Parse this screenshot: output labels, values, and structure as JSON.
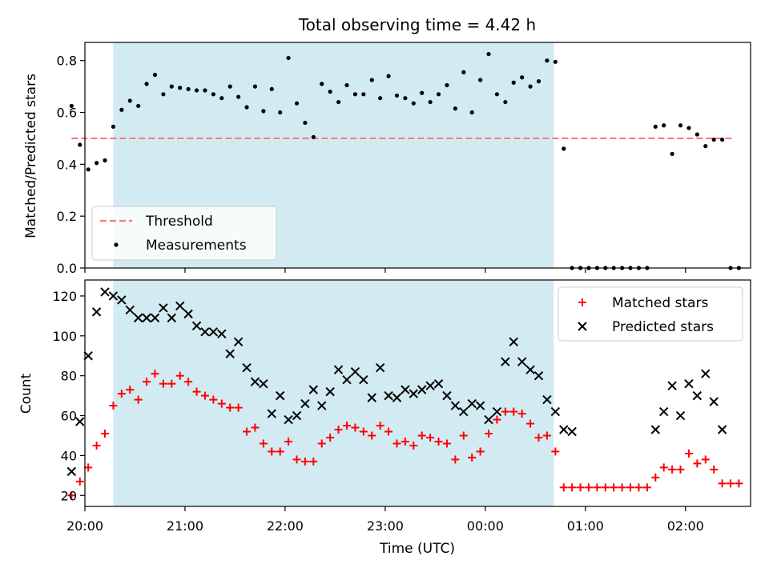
{
  "chart_data": [
    {
      "type": "scatter",
      "title": "Total observing time = 4.42 h",
      "xlabel": "",
      "ylabel": "Matched/Predicted stars",
      "ylim": [
        0,
        0.87
      ],
      "yticks": [
        "0.0",
        "0.2",
        "0.4",
        "0.6",
        "0.8"
      ],
      "xticks": [
        "20:00",
        "21:00",
        "22:00",
        "23:00",
        "00:00",
        "01:00",
        "02:00"
      ],
      "legend": {
        "placement": "lower-left",
        "entries": [
          "Threshold",
          "Measurements"
        ]
      },
      "shaded_interval": {
        "start": "20:17",
        "end": "00:41",
        "color": "#d2eaf1"
      },
      "threshold": {
        "name": "Threshold",
        "value": 0.5,
        "x_range": [
          "19:52",
          "02:28"
        ],
        "color": "#f87c7c"
      },
      "series": [
        {
          "name": "Measurements",
          "color": "#000000",
          "points": [
            [
              "19:52",
              0.625
            ],
            [
              "19:57",
              0.475
            ],
            [
              "20:02",
              0.38
            ],
            [
              "20:07",
              0.405
            ],
            [
              "20:12",
              0.415
            ],
            [
              "20:17",
              0.545
            ],
            [
              "20:22",
              0.61
            ],
            [
              "20:27",
              0.645
            ],
            [
              "20:32",
              0.625
            ],
            [
              "20:37",
              0.71
            ],
            [
              "20:42",
              0.745
            ],
            [
              "20:47",
              0.67
            ],
            [
              "20:52",
              0.7
            ],
            [
              "20:57",
              0.695
            ],
            [
              "21:02",
              0.69
            ],
            [
              "21:07",
              0.685
            ],
            [
              "21:12",
              0.685
            ],
            [
              "21:17",
              0.67
            ],
            [
              "21:22",
              0.655
            ],
            [
              "21:27",
              0.7
            ],
            [
              "21:32",
              0.66
            ],
            [
              "21:37",
              0.62
            ],
            [
              "21:42",
              0.7
            ],
            [
              "21:47",
              0.605
            ],
            [
              "21:52",
              0.69
            ],
            [
              "21:57",
              0.6
            ],
            [
              "22:02",
              0.81
            ],
            [
              "22:07",
              0.635
            ],
            [
              "22:12",
              0.56
            ],
            [
              "22:17",
              0.505
            ],
            [
              "22:22",
              0.71
            ],
            [
              "22:27",
              0.68
            ],
            [
              "22:32",
              0.64
            ],
            [
              "22:37",
              0.705
            ],
            [
              "22:42",
              0.67
            ],
            [
              "22:47",
              0.67
            ],
            [
              "22:52",
              0.725
            ],
            [
              "22:57",
              0.655
            ],
            [
              "23:02",
              0.74
            ],
            [
              "23:07",
              0.665
            ],
            [
              "23:12",
              0.655
            ],
            [
              "23:17",
              0.635
            ],
            [
              "23:22",
              0.675
            ],
            [
              "23:27",
              0.64
            ],
            [
              "23:32",
              0.67
            ],
            [
              "23:37",
              0.705
            ],
            [
              "23:42",
              0.615
            ],
            [
              "23:47",
              0.755
            ],
            [
              "23:52",
              0.6
            ],
            [
              "23:57",
              0.725
            ],
            [
              "00:02",
              0.825
            ],
            [
              "00:07",
              0.67
            ],
            [
              "00:12",
              0.64
            ],
            [
              "00:17",
              0.715
            ],
            [
              "00:22",
              0.735
            ],
            [
              "00:27",
              0.7
            ],
            [
              "00:32",
              0.72
            ],
            [
              "00:37",
              0.8
            ],
            [
              "00:42",
              0.795
            ],
            [
              "00:47",
              0.46
            ],
            [
              "00:52",
              0.0
            ],
            [
              "00:57",
              0.0
            ],
            [
              "01:02",
              0.0
            ],
            [
              "01:07",
              0.0
            ],
            [
              "01:12",
              0.0
            ],
            [
              "01:17",
              0.0
            ],
            [
              "01:22",
              0.0
            ],
            [
              "01:27",
              0.0
            ],
            [
              "01:32",
              0.0
            ],
            [
              "01:37",
              0.0
            ],
            [
              "01:42",
              0.545
            ],
            [
              "01:47",
              0.55
            ],
            [
              "01:52",
              0.44
            ],
            [
              "01:57",
              0.55
            ],
            [
              "02:02",
              0.54
            ],
            [
              "02:07",
              0.515
            ],
            [
              "02:12",
              0.47
            ],
            [
              "02:17",
              0.495
            ],
            [
              "02:22",
              0.495
            ],
            [
              "02:27",
              0.0
            ],
            [
              "02:32",
              0.0
            ]
          ]
        }
      ]
    },
    {
      "type": "scatter",
      "title": "",
      "xlabel": "Time (UTC)",
      "ylabel": "Count",
      "ylim": [
        14.5,
        128
      ],
      "yticks": [
        "20",
        "40",
        "60",
        "80",
        "100",
        "120"
      ],
      "xticks": [
        "20:00",
        "21:00",
        "22:00",
        "23:00",
        "00:00",
        "01:00",
        "02:00"
      ],
      "legend": {
        "placement": "upper-right",
        "entries": [
          "Matched stars",
          "Predicted stars"
        ]
      },
      "shaded_interval": {
        "start": "20:17",
        "end": "00:41",
        "color": "#d2eaf1"
      },
      "series": [
        {
          "name": "Matched stars",
          "marker": "+",
          "color": "#ff0000",
          "points": [
            [
              "19:52",
              20
            ],
            [
              "19:57",
              27
            ],
            [
              "20:02",
              34
            ],
            [
              "20:07",
              45
            ],
            [
              "20:12",
              51
            ],
            [
              "20:17",
              65
            ],
            [
              "20:22",
              71
            ],
            [
              "20:27",
              73
            ],
            [
              "20:32",
              68
            ],
            [
              "20:37",
              77
            ],
            [
              "20:42",
              81
            ],
            [
              "20:47",
              76
            ],
            [
              "20:52",
              76
            ],
            [
              "20:57",
              80
            ],
            [
              "21:02",
              77
            ],
            [
              "21:07",
              72
            ],
            [
              "21:12",
              70
            ],
            [
              "21:17",
              68
            ],
            [
              "21:22",
              66
            ],
            [
              "21:27",
              64
            ],
            [
              "21:32",
              64
            ],
            [
              "21:37",
              52
            ],
            [
              "21:42",
              54
            ],
            [
              "21:47",
              46
            ],
            [
              "21:52",
              42
            ],
            [
              "21:57",
              42
            ],
            [
              "22:02",
              47
            ],
            [
              "22:07",
              38
            ],
            [
              "22:12",
              37
            ],
            [
              "22:17",
              37
            ],
            [
              "22:22",
              46
            ],
            [
              "22:27",
              49
            ],
            [
              "22:32",
              53
            ],
            [
              "22:37",
              55
            ],
            [
              "22:42",
              54
            ],
            [
              "22:47",
              52
            ],
            [
              "22:52",
              50
            ],
            [
              "22:57",
              55
            ],
            [
              "23:02",
              52
            ],
            [
              "23:07",
              46
            ],
            [
              "23:12",
              47
            ],
            [
              "23:17",
              45
            ],
            [
              "23:22",
              50
            ],
            [
              "23:27",
              49
            ],
            [
              "23:32",
              47
            ],
            [
              "23:37",
              46
            ],
            [
              "23:42",
              38
            ],
            [
              "23:47",
              50
            ],
            [
              "23:52",
              39
            ],
            [
              "23:57",
              42
            ],
            [
              "00:02",
              51
            ],
            [
              "00:07",
              58
            ],
            [
              "00:12",
              62
            ],
            [
              "00:17",
              62
            ],
            [
              "00:22",
              61
            ],
            [
              "00:27",
              56
            ],
            [
              "00:32",
              49
            ],
            [
              "00:37",
              50
            ],
            [
              "00:42",
              42
            ],
            [
              "00:47",
              24
            ],
            [
              "00:52",
              24
            ],
            [
              "00:57",
              24
            ],
            [
              "01:02",
              24
            ],
            [
              "01:07",
              24
            ],
            [
              "01:12",
              24
            ],
            [
              "01:17",
              24
            ],
            [
              "01:22",
              24
            ],
            [
              "01:27",
              24
            ],
            [
              "01:32",
              24
            ],
            [
              "01:37",
              24
            ],
            [
              "01:42",
              29
            ],
            [
              "01:47",
              34
            ],
            [
              "01:52",
              33
            ],
            [
              "01:57",
              33
            ],
            [
              "02:02",
              41
            ],
            [
              "02:07",
              36
            ],
            [
              "02:12",
              38
            ],
            [
              "02:17",
              33
            ],
            [
              "02:22",
              26
            ],
            [
              "02:27",
              26
            ],
            [
              "02:32",
              26
            ]
          ]
        },
        {
          "name": "Predicted stars",
          "marker": "x",
          "color": "#000000",
          "points": [
            [
              "19:52",
              32
            ],
            [
              "19:57",
              57
            ],
            [
              "20:02",
              90
            ],
            [
              "20:07",
              112
            ],
            [
              "20:12",
              122
            ],
            [
              "20:17",
              120
            ],
            [
              "20:22",
              118
            ],
            [
              "20:27",
              113
            ],
            [
              "20:32",
              109
            ],
            [
              "20:37",
              109
            ],
            [
              "20:42",
              109
            ],
            [
              "20:47",
              114
            ],
            [
              "20:52",
              109
            ],
            [
              "20:57",
              115
            ],
            [
              "21:02",
              111
            ],
            [
              "21:07",
              105
            ],
            [
              "21:12",
              102
            ],
            [
              "21:17",
              102
            ],
            [
              "21:22",
              101
            ],
            [
              "21:27",
              91
            ],
            [
              "21:32",
              97
            ],
            [
              "21:37",
              84
            ],
            [
              "21:42",
              77
            ],
            [
              "21:47",
              76
            ],
            [
              "21:52",
              61
            ],
            [
              "21:57",
              70
            ],
            [
              "22:02",
              58
            ],
            [
              "22:07",
              60
            ],
            [
              "22:12",
              66
            ],
            [
              "22:17",
              73
            ],
            [
              "22:22",
              65
            ],
            [
              "22:27",
              72
            ],
            [
              "22:32",
              83
            ],
            [
              "22:37",
              78
            ],
            [
              "22:42",
              82
            ],
            [
              "22:47",
              78
            ],
            [
              "22:52",
              69
            ],
            [
              "22:57",
              84
            ],
            [
              "23:02",
              70
            ],
            [
              "23:07",
              69
            ],
            [
              "23:12",
              73
            ],
            [
              "23:17",
              71
            ],
            [
              "23:22",
              73
            ],
            [
              "23:27",
              75
            ],
            [
              "23:32",
              76
            ],
            [
              "23:37",
              70
            ],
            [
              "23:42",
              65
            ],
            [
              "23:47",
              62
            ],
            [
              "23:52",
              66
            ],
            [
              "23:57",
              65
            ],
            [
              "00:02",
              58
            ],
            [
              "00:07",
              62
            ],
            [
              "00:12",
              87
            ],
            [
              "00:17",
              97
            ],
            [
              "00:22",
              87
            ],
            [
              "00:27",
              83
            ],
            [
              "00:32",
              80
            ],
            [
              "00:37",
              68
            ],
            [
              "00:42",
              62
            ],
            [
              "00:47",
              53
            ],
            [
              "00:52",
              52
            ],
            [
              "01:42",
              53
            ],
            [
              "01:47",
              62
            ],
            [
              "01:52",
              75
            ],
            [
              "01:57",
              60
            ],
            [
              "02:02",
              76
            ],
            [
              "02:07",
              70
            ],
            [
              "02:12",
              81
            ],
            [
              "02:17",
              67
            ],
            [
              "02:22",
              53
            ]
          ]
        }
      ]
    }
  ]
}
